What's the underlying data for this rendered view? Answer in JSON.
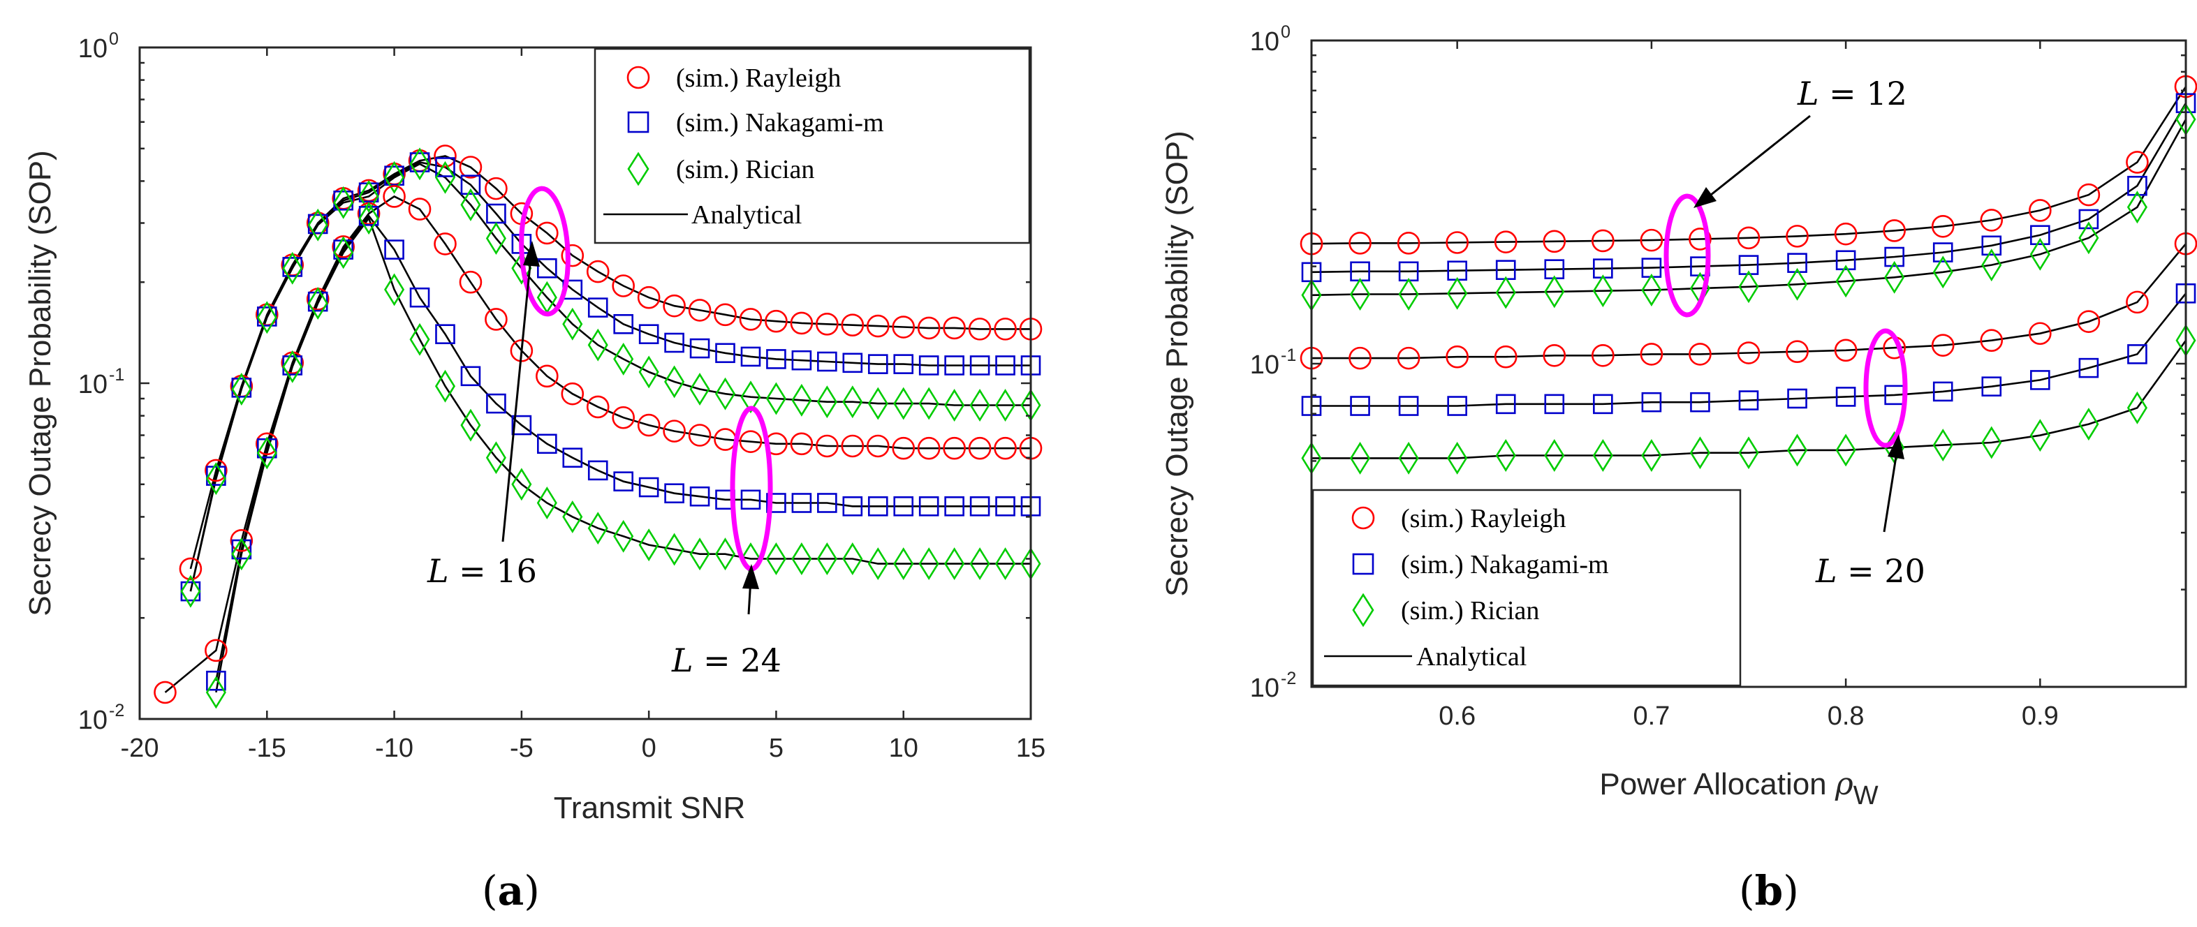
{
  "colors": {
    "rayleigh": "#ff0000",
    "nakagami": "#0000cc",
    "rician": "#00cc00",
    "analytical": "#000000",
    "ellipse": "#ff00ff"
  },
  "panels": [
    {
      "label_open": "(",
      "label_letter": "a",
      "label_close": ")"
    },
    {
      "label_open": "(",
      "label_letter": "b",
      "label_close": ")"
    }
  ],
  "chart_data": [
    {
      "type": "line",
      "xlabel": "Transmit SNR",
      "ylabel": "Secrecy Outage Probability (SOP)",
      "xlim": [
        -20,
        15
      ],
      "ylim": [
        0.01,
        1
      ],
      "y_scale": "log",
      "x_ticks": [
        "-20",
        "-15",
        "-10",
        "-5",
        "0",
        "5",
        "10",
        "15"
      ],
      "y_ticks": [
        {
          "base": "10",
          "exp": "-2"
        },
        {
          "base": "10",
          "exp": "-1"
        },
        {
          "base": "10",
          "exp": "0"
        }
      ],
      "legend_position": "top-right",
      "legend": [
        {
          "marker": "circle",
          "label": "(sim.) Rayleigh"
        },
        {
          "marker": "square",
          "label": "(sim.) Nakagami-m"
        },
        {
          "marker": "diamond",
          "label": "(sim.) Rician"
        },
        {
          "marker": "line",
          "label": "Analytical"
        }
      ],
      "annotations": [
        {
          "var": "L",
          "text": " = 16"
        },
        {
          "var": "L",
          "text": " = 24"
        }
      ],
      "x": [
        -19,
        -18,
        -17,
        -16,
        -15,
        -14,
        -13,
        -12,
        -11,
        -10,
        -9,
        -8,
        -7,
        -6,
        -5,
        -4,
        -3,
        -2,
        -1,
        0,
        1,
        2,
        3,
        4,
        5,
        6,
        7,
        8,
        9,
        10,
        11,
        12,
        13,
        14,
        15
      ],
      "series": [
        {
          "fading": "rayleigh",
          "marker": "circle",
          "group": "L=16",
          "values": [
            null,
            0.028,
            0.055,
            0.098,
            0.16,
            0.225,
            0.3,
            0.355,
            0.375,
            0.42,
            0.46,
            0.475,
            0.44,
            0.38,
            0.32,
            0.28,
            0.24,
            0.215,
            0.195,
            0.18,
            0.17,
            0.165,
            0.16,
            0.155,
            0.153,
            0.151,
            0.15,
            0.149,
            0.148,
            0.147,
            0.146,
            0.146,
            0.145,
            0.145,
            0.145
          ]
        },
        {
          "fading": "nakagami",
          "marker": "square",
          "group": "L=16",
          "values": [
            null,
            0.024,
            0.053,
            0.097,
            0.158,
            0.222,
            0.298,
            0.35,
            0.37,
            0.415,
            0.455,
            0.44,
            0.39,
            0.32,
            0.26,
            0.22,
            0.19,
            0.168,
            0.15,
            0.14,
            0.132,
            0.127,
            0.123,
            0.12,
            0.118,
            0.117,
            0.116,
            0.115,
            0.114,
            0.114,
            0.113,
            0.113,
            0.113,
            0.113,
            0.113
          ]
        },
        {
          "fading": "rician",
          "marker": "diamond",
          "group": "L=16",
          "values": [
            null,
            0.024,
            0.052,
            0.096,
            0.157,
            0.22,
            0.296,
            0.345,
            0.36,
            0.41,
            0.45,
            0.41,
            0.34,
            0.27,
            0.22,
            0.18,
            0.15,
            0.13,
            0.118,
            0.108,
            0.101,
            0.096,
            0.093,
            0.091,
            0.09,
            0.089,
            0.088,
            0.088,
            0.087,
            0.087,
            0.087,
            0.086,
            0.086,
            0.086,
            0.086
          ]
        },
        {
          "fading": "rayleigh",
          "marker": "circle",
          "group": "L=24",
          "values": [
            0.012,
            null,
            0.016,
            0.034,
            0.066,
            0.115,
            0.178,
            0.255,
            0.32,
            0.36,
            0.33,
            0.26,
            0.2,
            0.155,
            0.125,
            0.105,
            0.093,
            0.085,
            0.079,
            0.075,
            0.072,
            0.07,
            0.068,
            0.067,
            0.066,
            0.066,
            0.065,
            0.065,
            0.065,
            0.064,
            0.064,
            0.064,
            0.064,
            0.064,
            0.064
          ]
        },
        {
          "fading": "nakagami",
          "marker": "square",
          "group": "L=24",
          "values": [
            null,
            null,
            0.013,
            0.032,
            0.064,
            0.113,
            0.175,
            0.25,
            0.315,
            0.25,
            0.18,
            0.14,
            0.105,
            0.087,
            0.075,
            0.066,
            0.06,
            0.055,
            0.051,
            0.049,
            0.047,
            0.046,
            0.045,
            0.045,
            0.044,
            0.044,
            0.044,
            0.043,
            0.043,
            0.043,
            0.043,
            0.043,
            0.043,
            0.043,
            0.043
          ]
        },
        {
          "fading": "rician",
          "marker": "diamond",
          "group": "L=24",
          "values": [
            null,
            null,
            0.012,
            0.031,
            0.062,
            0.112,
            0.173,
            0.245,
            0.31,
            0.19,
            0.135,
            0.098,
            0.075,
            0.06,
            0.05,
            0.044,
            0.04,
            0.037,
            0.035,
            0.033,
            0.032,
            0.031,
            0.031,
            0.03,
            0.03,
            0.03,
            0.03,
            0.03,
            0.029,
            0.029,
            0.029,
            0.029,
            0.029,
            0.029,
            0.029
          ]
        }
      ]
    },
    {
      "type": "line",
      "xlabel": "Power Allocation ",
      "xlabel_symbol": "ρ",
      "xlabel_sub": "W",
      "ylabel": "Secrecy Outage Probability (SOP)",
      "xlim": [
        0.525,
        0.975
      ],
      "ylim": [
        0.01,
        1
      ],
      "y_scale": "log",
      "x_ticks": [
        "0.6",
        "0.7",
        "0.8",
        "0.9"
      ],
      "y_ticks": [
        {
          "base": "10",
          "exp": "-2"
        },
        {
          "base": "10",
          "exp": "-1"
        },
        {
          "base": "10",
          "exp": "0"
        }
      ],
      "legend_position": "bottom-left",
      "legend": [
        {
          "marker": "circle",
          "label": "(sim.) Rayleigh"
        },
        {
          "marker": "square",
          "label": "(sim.) Nakagami-m"
        },
        {
          "marker": "diamond",
          "label": "(sim.) Rician"
        },
        {
          "marker": "line",
          "label": "Analytical"
        }
      ],
      "annotations": [
        {
          "var": "L",
          "text": " = 12"
        },
        {
          "var": "L",
          "text": " = 20"
        }
      ],
      "x": [
        0.525,
        0.55,
        0.575,
        0.6,
        0.625,
        0.65,
        0.675,
        0.7,
        0.725,
        0.75,
        0.775,
        0.8,
        0.825,
        0.85,
        0.875,
        0.9,
        0.925,
        0.95,
        0.975
      ],
      "series": [
        {
          "fading": "rayleigh",
          "marker": "circle",
          "group": "L=12",
          "values": [
            0.235,
            0.236,
            0.236,
            0.237,
            0.238,
            0.239,
            0.24,
            0.241,
            0.243,
            0.245,
            0.248,
            0.252,
            0.258,
            0.266,
            0.278,
            0.298,
            0.333,
            0.42,
            0.72
          ]
        },
        {
          "fading": "nakagami",
          "marker": "square",
          "group": "L=12",
          "values": [
            0.192,
            0.193,
            0.193,
            0.194,
            0.195,
            0.196,
            0.197,
            0.198,
            0.2,
            0.202,
            0.205,
            0.209,
            0.214,
            0.221,
            0.232,
            0.25,
            0.28,
            0.355,
            0.64
          ]
        },
        {
          "fading": "rician",
          "marker": "diamond",
          "group": "L=12",
          "values": [
            0.163,
            0.164,
            0.164,
            0.165,
            0.166,
            0.167,
            0.168,
            0.169,
            0.171,
            0.173,
            0.176,
            0.18,
            0.185,
            0.192,
            0.202,
            0.218,
            0.245,
            0.305,
            0.57
          ]
        },
        {
          "fading": "rayleigh",
          "marker": "circle",
          "group": "L=20",
          "values": [
            0.104,
            0.104,
            0.104,
            0.105,
            0.105,
            0.106,
            0.106,
            0.107,
            0.107,
            0.108,
            0.109,
            0.11,
            0.112,
            0.114,
            0.118,
            0.124,
            0.135,
            0.155,
            0.235
          ]
        },
        {
          "fading": "nakagami",
          "marker": "square",
          "group": "L=20",
          "values": [
            0.074,
            0.074,
            0.074,
            0.074,
            0.075,
            0.075,
            0.075,
            0.076,
            0.076,
            0.077,
            0.078,
            0.079,
            0.08,
            0.082,
            0.085,
            0.089,
            0.097,
            0.107,
            0.165
          ]
        },
        {
          "fading": "rician",
          "marker": "diamond",
          "group": "L=20",
          "values": [
            0.051,
            0.051,
            0.051,
            0.051,
            0.052,
            0.052,
            0.052,
            0.052,
            0.053,
            0.053,
            0.054,
            0.054,
            0.055,
            0.056,
            0.057,
            0.06,
            0.065,
            0.073,
            0.118
          ]
        }
      ]
    }
  ]
}
